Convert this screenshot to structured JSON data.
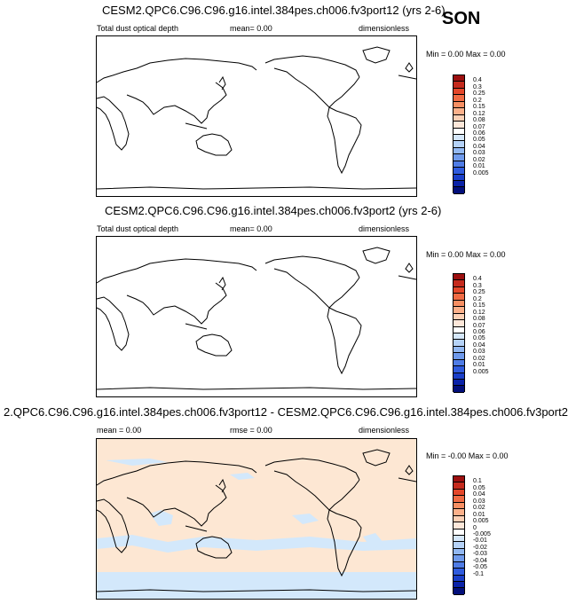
{
  "season": "SON",
  "panels": [
    {
      "title": "CESM2.QPC6.C96.C96.g16.intel.384pes.ch006.fv3port12 (yrs 2-6)",
      "left_label": "Total dust optical depth",
      "center_label": "mean=  0.00",
      "right_label": "dimensionless",
      "minmax": "Min =   0.00 Max =   0.00",
      "colorbar_labels": [
        "0.4",
        "0.3",
        "0.25",
        "0.2",
        "0.15",
        "0.12",
        "0.08",
        "0.07",
        "0.06",
        "0.05",
        "0.04",
        "0.03",
        "0.02",
        "0.01",
        "0.005"
      ],
      "fill": "none"
    },
    {
      "title": "CESM2.QPC6.C96.C96.g16.intel.384pes.ch006.fv3port2 (yrs 2-6)",
      "left_label": "Total dust optical depth",
      "center_label": "mean=  0.00",
      "right_label": "dimensionless",
      "minmax": "Min =   0.00 Max =   0.00",
      "colorbar_labels": [
        "0.4",
        "0.3",
        "0.25",
        "0.2",
        "0.15",
        "0.12",
        "0.08",
        "0.07",
        "0.06",
        "0.05",
        "0.04",
        "0.03",
        "0.02",
        "0.01",
        "0.005"
      ],
      "fill": "none"
    },
    {
      "title": "2.QPC6.C96.C96.g16.intel.384pes.ch006.fv3port12 - CESM2.QPC6.C96.C96.g16.intel.384pes.ch006.fv3port2",
      "left_label": "mean =   0.00",
      "center_label": "rmse =  0.00",
      "right_label": "dimensionless",
      "minmax": "Min =  -0.00 Max =   0.00",
      "colorbar_labels": [
        "0.1",
        "0.05",
        "0.04",
        "0.03",
        "0.02",
        "0.01",
        "0.005",
        "0",
        "-0.005",
        "-0.01",
        "-0.02",
        "-0.03",
        "-0.04",
        "-0.05",
        "-0.1"
      ],
      "fill": "diff"
    }
  ],
  "colors": {
    "colorbar": [
      "#9c0f0f",
      "#c52a1d",
      "#e4472a",
      "#f06b44",
      "#f78f63",
      "#fbb08a",
      "#fcd0b5",
      "#fde7d9",
      "#ffffff",
      "#d5e7fa",
      "#b5d2f7",
      "#92b8f2",
      "#6f9aec",
      "#4f7ce6",
      "#2f5bde",
      "#1a3fc9",
      "#0b23a8",
      "#030f7a"
    ],
    "diff_positive": "#fde7d3",
    "diff_negative": "#d3e8fb"
  },
  "chart_data": [
    {
      "type": "heatmap",
      "title": "CESM2.QPC6.C96.C96.g16.intel.384pes.ch006.fv3port12 (yrs 2-6)",
      "variable": "Total dust optical depth",
      "units": "dimensionless",
      "mean": 0.0,
      "min": 0.0,
      "max": 0.0,
      "levels": [
        0.005,
        0.01,
        0.02,
        0.03,
        0.04,
        0.05,
        0.06,
        0.07,
        0.08,
        0.12,
        0.15,
        0.2,
        0.25,
        0.3,
        0.4
      ]
    },
    {
      "type": "heatmap",
      "title": "CESM2.QPC6.C96.C96.g16.intel.384pes.ch006.fv3port2 (yrs 2-6)",
      "variable": "Total dust optical depth",
      "units": "dimensionless",
      "mean": 0.0,
      "min": 0.0,
      "max": 0.0,
      "levels": [
        0.005,
        0.01,
        0.02,
        0.03,
        0.04,
        0.05,
        0.06,
        0.07,
        0.08,
        0.12,
        0.15,
        0.2,
        0.25,
        0.3,
        0.4
      ]
    },
    {
      "type": "heatmap",
      "title": "2.QPC6.C96.C96.g16.intel.384pes.ch006.fv3port12 - CESM2.QPC6.C96.C96.g16.intel.384pes.ch006.fv3port2",
      "units": "dimensionless",
      "mean": 0.0,
      "rmse": 0.0,
      "min": -0.0,
      "max": 0.0,
      "levels": [
        -0.1,
        -0.05,
        -0.04,
        -0.03,
        -0.02,
        -0.01,
        -0.005,
        0,
        0.005,
        0.01,
        0.02,
        0.03,
        0.04,
        0.05,
        0.1
      ]
    }
  ]
}
